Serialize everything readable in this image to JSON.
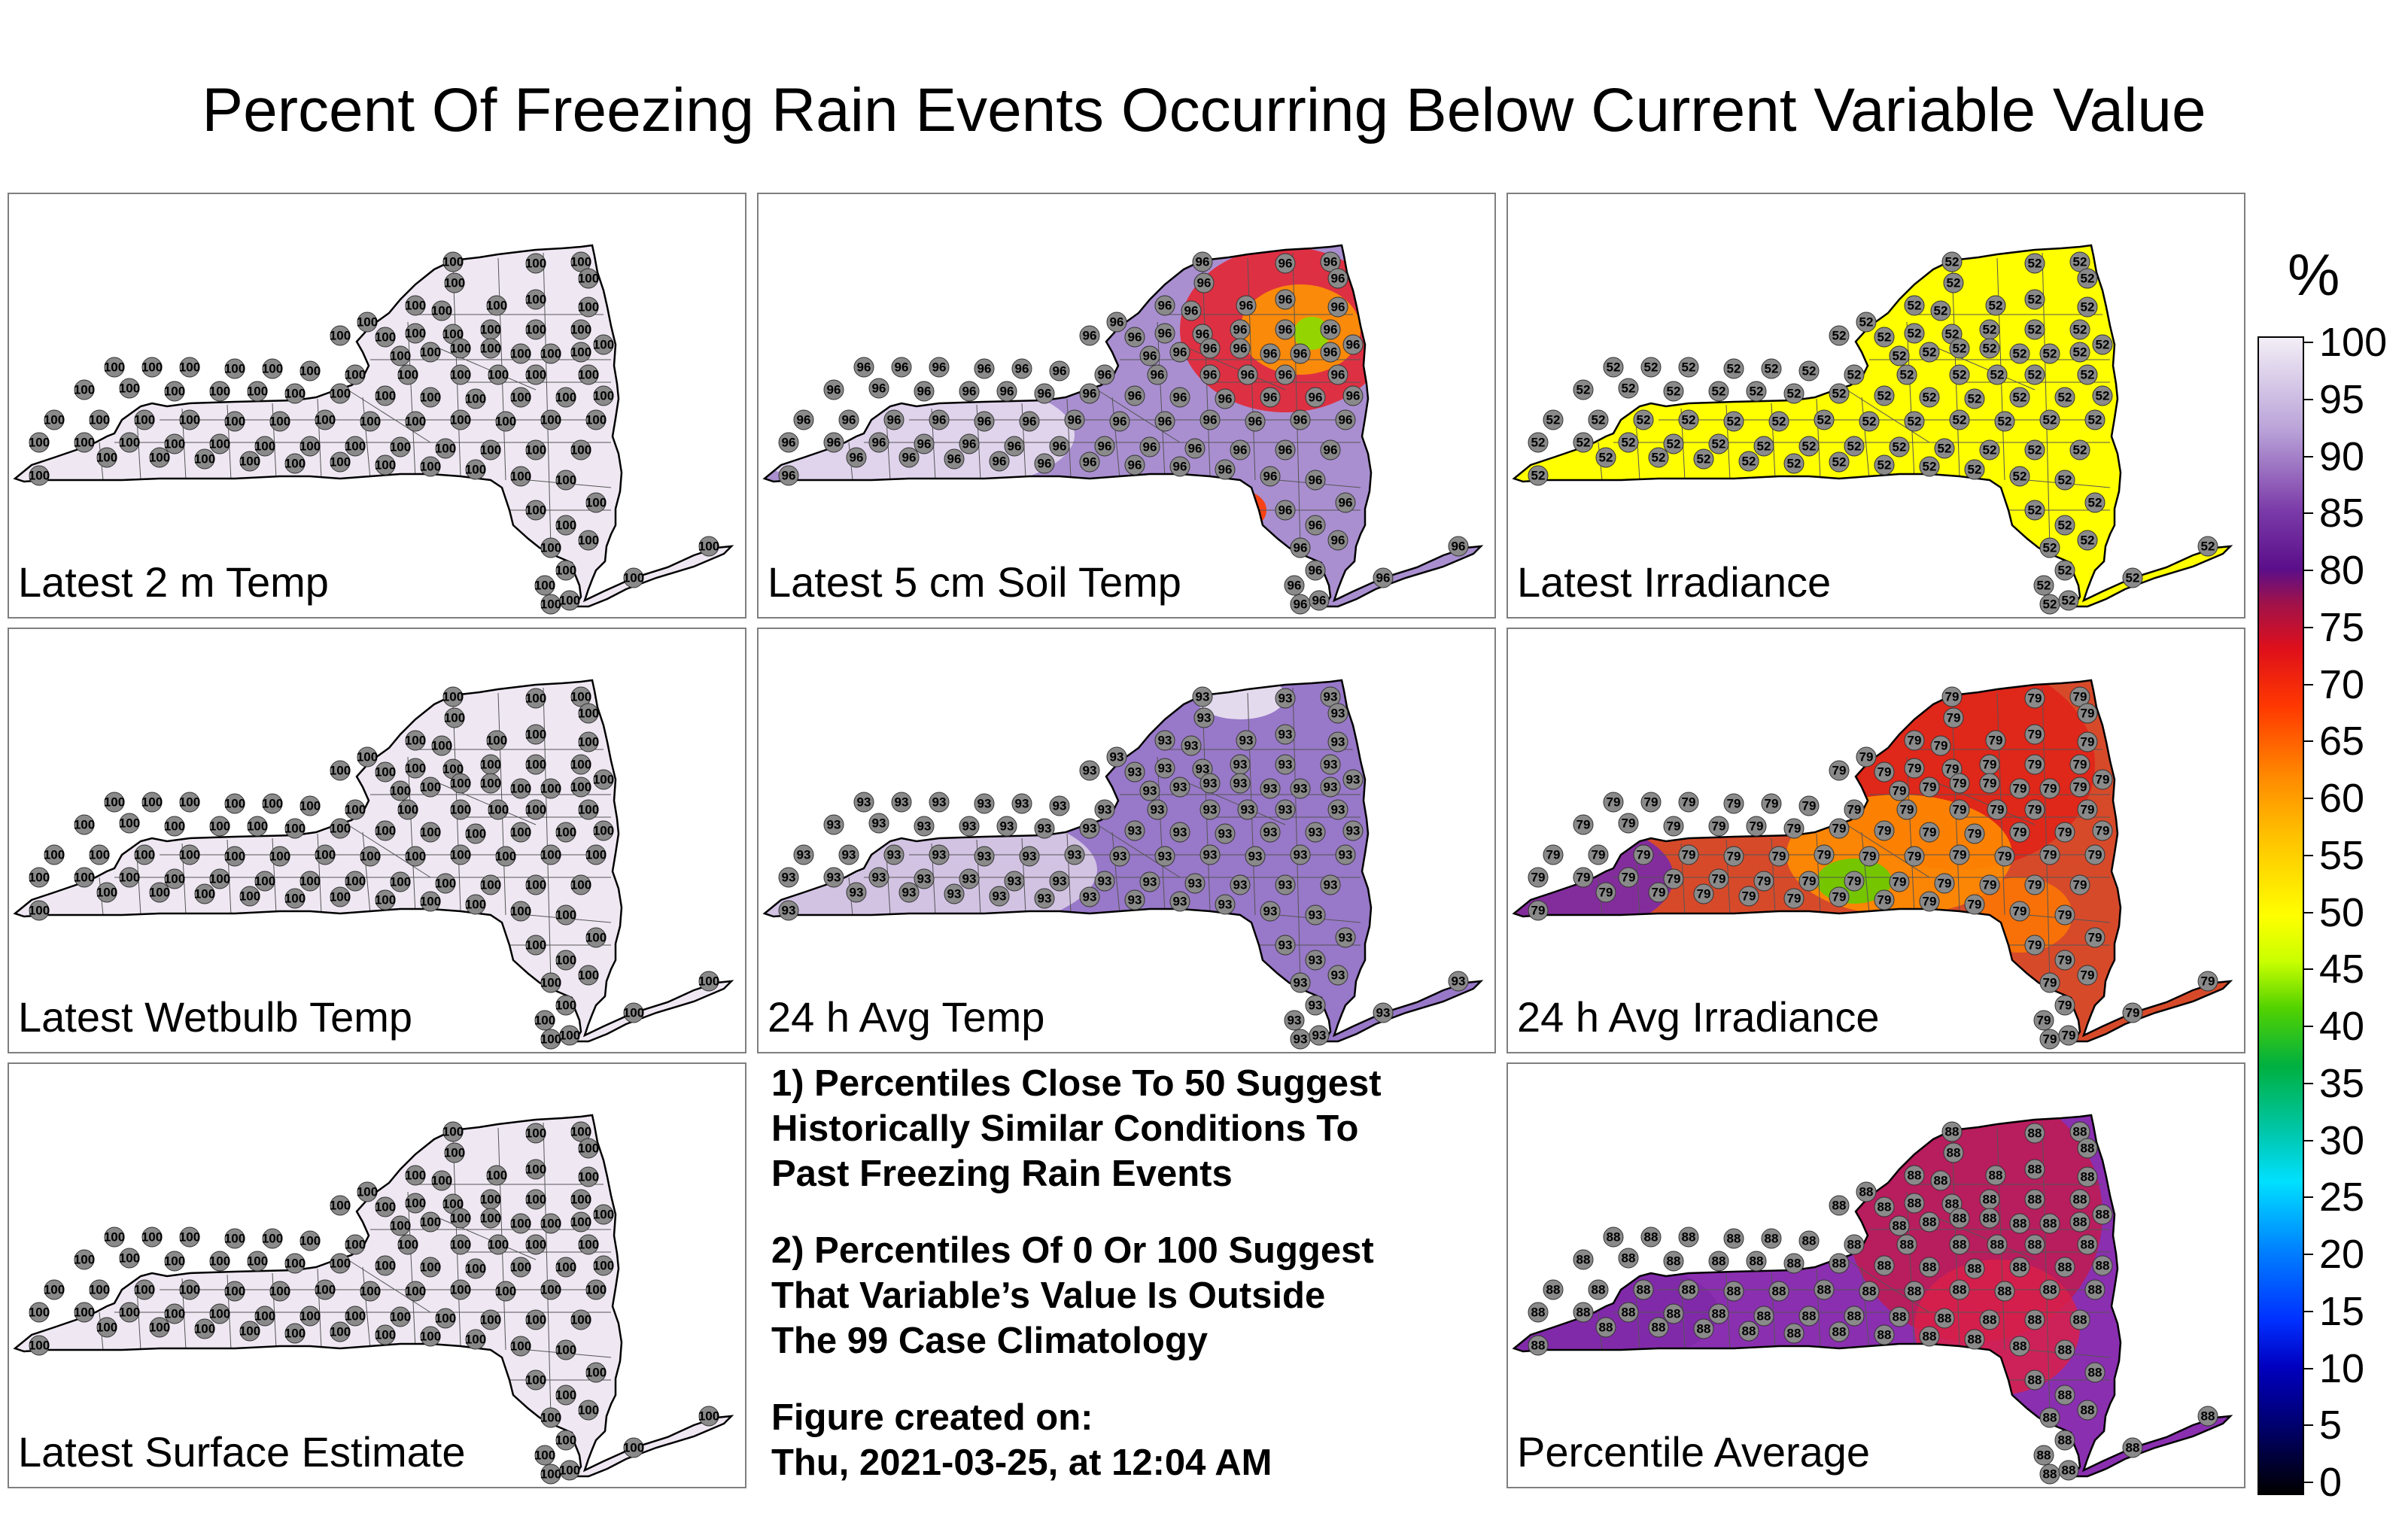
{
  "title": "Percent Of Freezing Rain Events Occurring Below Current Variable Value",
  "colorbar": {
    "unit": "%",
    "ticks": [
      "100",
      "95",
      "90",
      "85",
      "80",
      "75",
      "70",
      "65",
      "60",
      "55",
      "50",
      "45",
      "40",
      "35",
      "30",
      "25",
      "20",
      "15",
      "10",
      "5",
      "0"
    ],
    "scale_range": [
      0,
      100
    ]
  },
  "panels": [
    {
      "label": "Latest 2 m Temp",
      "fill": "#efe8f3",
      "value": "100"
    },
    {
      "label": "Latest 5 cm Soil Temp",
      "fill": "#a98fd0",
      "value": "96"
    },
    {
      "label": "Latest Irradiance",
      "fill": "#ffff00",
      "value": "52"
    },
    {
      "label": "Latest Wetbulb Temp",
      "fill": "#efe8f3",
      "value": "100"
    },
    {
      "label": "24 h Avg Temp",
      "fill": "#9878c8",
      "value": "93"
    },
    {
      "label": "24 h Avg Irradiance",
      "fill": "#d64a2a",
      "value": "79"
    },
    {
      "label": "Latest Surface Estimate",
      "fill": "#efe8f3",
      "value": "100"
    },
    {
      "label": "Percentile Average",
      "fill": "#8a2fb0",
      "value": "88"
    }
  ],
  "notes": [
    "1) Percentiles Close To 50 Suggest\nHistorically Similar Conditions To\nPast Freezing Rain Events",
    "2) Percentiles Of 0 Or 100 Suggest\nThat Variable’s Value Is Outside\nThe 99 Case Climatology",
    "Figure created on:\nThu, 2021-03-25, at 12:04 AM"
  ]
}
